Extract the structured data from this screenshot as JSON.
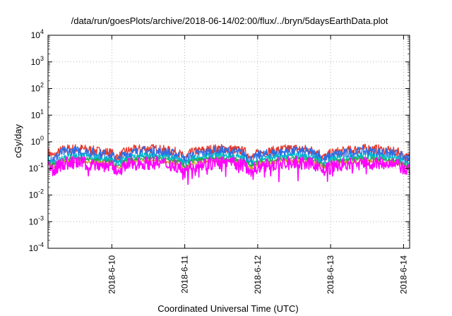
{
  "chart_data": {
    "type": "line",
    "title": "/data/run/goesPlots/archive/2018-06-14/02:00/flux/../bryn/5daysEarthData.plot",
    "xlabel": "Coordinated Universal Time (UTC)",
    "ylabel": "cGy/day",
    "y_scale": "log",
    "ylim": [
      0.0001,
      10000
    ],
    "xlim": [
      "2018-06-09T03:00",
      "2018-06-14T02:00"
    ],
    "y_ticks": [
      {
        "value": 0.0001,
        "base": "10",
        "exp": "-4"
      },
      {
        "value": 0.001,
        "base": "10",
        "exp": "-3"
      },
      {
        "value": 0.01,
        "base": "10",
        "exp": "-2"
      },
      {
        "value": 0.1,
        "base": "10",
        "exp": "-1"
      },
      {
        "value": 1,
        "base": "10",
        "exp": "0"
      },
      {
        "value": 10,
        "base": "10",
        "exp": "1"
      },
      {
        "value": 100,
        "base": "10",
        "exp": "2"
      },
      {
        "value": 1000,
        "base": "10",
        "exp": "3"
      },
      {
        "value": 10000,
        "base": "10",
        "exp": "4"
      }
    ],
    "x_ticks": [
      "2018-6-10",
      "2018-6-11",
      "2018-6-12",
      "2018-6-13",
      "2018-6-14"
    ],
    "x_tick_times": [
      "2018-06-10T00:00",
      "2018-06-11T00:00",
      "2018-06-12T00:00",
      "2018-06-13T00:00",
      "2018-06-14T00:00"
    ],
    "grid": true,
    "series": [
      {
        "color": "#e8392b",
        "level": 0.38,
        "amp": 0.45,
        "noise": 0.18
      },
      {
        "color": "#2b6de8",
        "level": 0.3,
        "amp": 0.45,
        "noise": 0.2
      },
      {
        "color": "#00b8c8",
        "level": 0.22,
        "amp": 0.35,
        "noise": 0.12
      },
      {
        "color": "#2aa84a",
        "level": 0.18,
        "amp": 0.3,
        "noise": 0.08
      },
      {
        "color": "#c8a020",
        "level": 0.15,
        "amp": 0.25,
        "noise": 0.06
      },
      {
        "color": "#ff00ff",
        "level": 0.12,
        "amp": 0.35,
        "noise": 0.25
      }
    ],
    "daily_peak_times": [
      "2018-06-09T12:00",
      "2018-06-10T12:00",
      "2018-06-11T12:00",
      "2018-06-12T12:00",
      "2018-06-13T12:00"
    ],
    "dip_times": [
      "2018-06-09T05:00",
      "2018-06-10T02:00",
      "2018-06-11T00:00",
      "2018-06-11T22:00",
      "2018-06-12T22:00",
      "2018-06-14T01:00"
    ]
  }
}
